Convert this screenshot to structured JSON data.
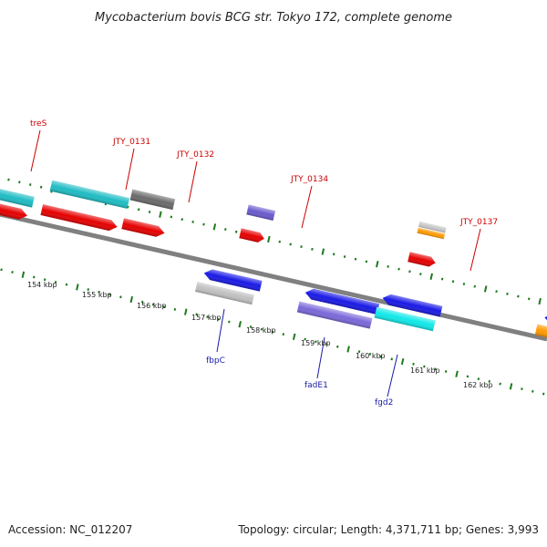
{
  "title": "Mycobacterium bovis BCG str. Tokyo 172, complete genome",
  "footer": {
    "accession": "Accession: NC_012207",
    "topology": "Topology: circular; Length: 4,371,711 bp; Genes: 3,993"
  },
  "colors": {
    "backbone": "#808080",
    "tick": "#1e7a1e",
    "label_top": "#cc0000",
    "label_bottom": "#1a1aa6"
  },
  "scale_labels": [
    "154 kbp",
    "155 kbp",
    "156 kbp",
    "157 kbp",
    "158 kbp",
    "159 kbp",
    "160 kbp",
    "161 kbp",
    "162 kbp"
  ],
  "labels_top": [
    "treS",
    "JTY_0131",
    "JTY_0132",
    "JTY_0134",
    "JTY_0137"
  ],
  "labels_bottom": [
    "fbpC",
    "fadE1",
    "fgd2"
  ]
}
